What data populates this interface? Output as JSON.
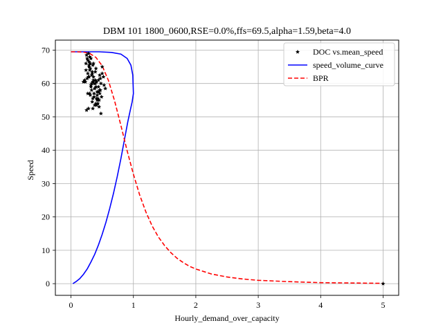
{
  "chart_data": {
    "type": "line",
    "title": "DBM 101 1800_0600,RSE=0.0%,ffs=69.5,alpha=1.59,beta=4.0",
    "xlabel": "Hourly_demand_over_capacity",
    "ylabel": "Speed",
    "xlim": [
      -0.25,
      5.25
    ],
    "ylim": [
      -3.5,
      73
    ],
    "xticks": [
      0,
      1,
      2,
      3,
      4,
      5
    ],
    "yticks": [
      0,
      10,
      20,
      30,
      40,
      50,
      60,
      70
    ],
    "grid": true,
    "legend_position": "top-right",
    "colors": {
      "scatter": "#000000",
      "speed_volume_curve": "#0000ff",
      "bpr": "#ff0000",
      "grid": "#b0b0b0"
    },
    "series": [
      {
        "name": "DOC vs.mean_speed",
        "type": "scatter",
        "x": [
          0.22,
          0.23,
          0.24,
          0.25,
          0.26,
          0.27,
          0.28,
          0.29,
          0.3,
          0.31,
          0.32,
          0.33,
          0.34,
          0.35,
          0.36,
          0.37,
          0.38,
          0.39,
          0.4,
          0.41,
          0.42,
          0.43,
          0.44,
          0.45,
          0.46,
          0.47,
          0.48,
          0.5,
          0.52,
          0.55,
          0.25,
          0.28,
          0.3,
          0.33,
          0.35,
          0.38,
          0.4,
          0.42,
          0.45,
          0.48,
          0.27,
          0.29,
          0.31,
          0.34,
          0.36,
          0.39,
          0.41,
          0.44,
          0.47,
          0.5,
          0.2,
          0.26,
          0.32,
          0.37,
          0.43,
          0.28,
          0.3,
          0.35,
          0.4,
          0.46,
          0.24,
          0.29,
          0.33,
          0.38,
          0.42,
          0.36,
          0.39,
          0.44,
          0.27,
          0.31,
          0.34,
          0.41,
          0.49,
          0.53,
          0.29,
          0.32,
          0.37,
          0.43,
          0.46,
          0.35,
          5.0
        ],
        "y": [
          61.0,
          60.5,
          66.0,
          68.5,
          67.5,
          63.0,
          62.0,
          65.5,
          64.0,
          66.0,
          59.5,
          62.5,
          63.5,
          60.5,
          61.0,
          57.0,
          58.5,
          60.0,
          59.0,
          55.5,
          56.5,
          54.0,
          57.5,
          55.0,
          58.0,
          61.5,
          60.0,
          65.0,
          62.0,
          58.5,
          52.0,
          52.5,
          57.0,
          58.0,
          55.5,
          53.5,
          54.0,
          55.0,
          53.0,
          51.0,
          67.0,
          66.5,
          64.5,
          63.0,
          62.0,
          61.0,
          60.5,
          59.0,
          58.0,
          63.0,
          60.5,
          61.5,
          59.0,
          56.0,
          54.0,
          69.0,
          68.0,
          65.5,
          64.5,
          62.5,
          64.0,
          65.0,
          60.0,
          58.5,
          57.5,
          66.0,
          63.5,
          61.0,
          57.0,
          56.5,
          54.5,
          53.5,
          56.0,
          59.5,
          62.0,
          67.5,
          60.0,
          55.5,
          57.0,
          52.5,
          0.0
        ]
      },
      {
        "name": "speed_volume_curve",
        "type": "line",
        "x": [
          0.03,
          0.08,
          0.14,
          0.2,
          0.26,
          0.32,
          0.38,
          0.44,
          0.5,
          0.56,
          0.62,
          0.68,
          0.74,
          0.8,
          0.86,
          0.91,
          0.95,
          0.98,
          1.0,
          0.99,
          0.96,
          0.9,
          0.8,
          0.65,
          0.45,
          0.2,
          0.0
        ],
        "y": [
          0,
          0.6,
          1.5,
          2.8,
          4.4,
          6.5,
          8.8,
          11.6,
          14.8,
          18.4,
          22.5,
          27.0,
          32.0,
          37.5,
          43.5,
          48.5,
          52.0,
          54.5,
          57.0,
          62.5,
          65.5,
          67.5,
          68.8,
          69.3,
          69.5,
          69.5,
          69.5
        ]
      },
      {
        "name": "BPR",
        "type": "line",
        "x": [
          0.0,
          0.1,
          0.2,
          0.3,
          0.4,
          0.5,
          0.6,
          0.7,
          0.8,
          0.9,
          1.0,
          1.1,
          1.2,
          1.3,
          1.4,
          1.5,
          1.6,
          1.7,
          1.8,
          1.9,
          2.0,
          2.25,
          2.5,
          2.75,
          3.0,
          3.5,
          4.0,
          4.5,
          5.0
        ],
        "y": [
          69.5,
          69.5,
          69.4,
          69.0,
          67.8,
          65.3,
          60.9,
          54.7,
          47.4,
          39.8,
          32.8,
          26.6,
          21.5,
          17.3,
          14.0,
          11.4,
          9.3,
          7.6,
          6.3,
          5.2,
          4.4,
          2.9,
          2.0,
          1.4,
          1.0,
          0.6,
          0.3,
          0.2,
          0.1
        ]
      }
    ]
  }
}
